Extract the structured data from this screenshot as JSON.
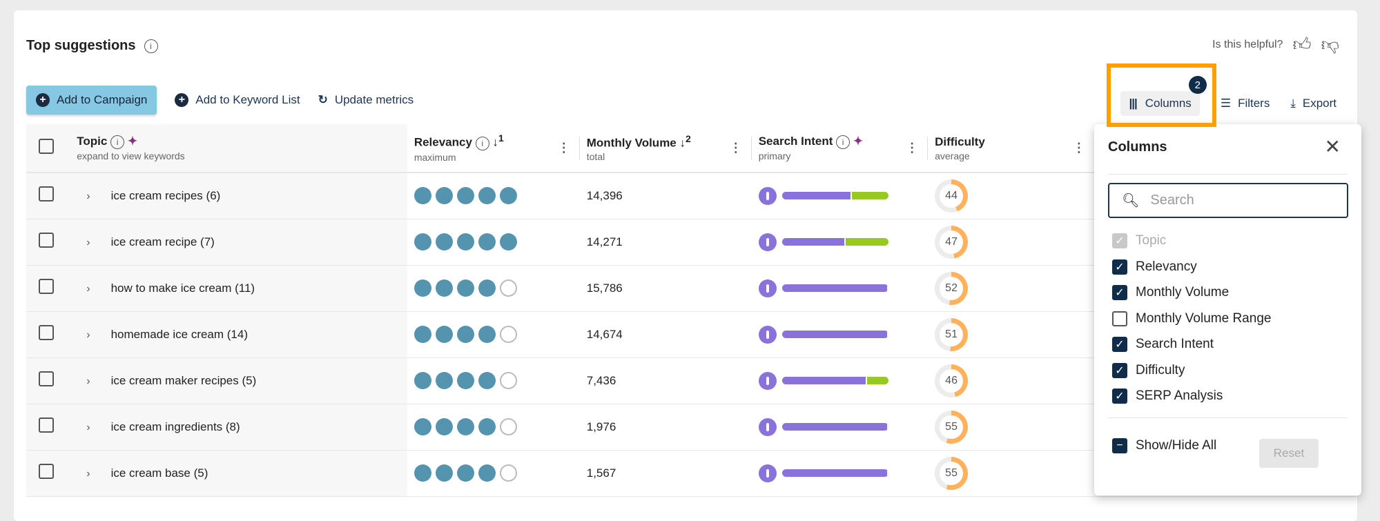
{
  "header": {
    "title": "Top suggestions",
    "helpful": "Is this helpful?"
  },
  "toolbar": {
    "add_campaign": "Add to Campaign",
    "add_keyword_list": "Add to Keyword List",
    "update_metrics": "Update metrics",
    "columns": "Columns",
    "columns_badge": "2",
    "filters": "Filters",
    "export": "Export"
  },
  "table": {
    "headers": [
      {
        "label": "Topic",
        "sub": "expand to view keywords"
      },
      {
        "label": "Relevancy",
        "sub": "maximum",
        "sort": "1"
      },
      {
        "label": "Monthly Volume",
        "sub": "total",
        "sort": "2"
      },
      {
        "label": "Search Intent",
        "sub": "primary"
      },
      {
        "label": "Difficulty",
        "sub": "average"
      }
    ],
    "rows": [
      {
        "topic": "ice cream recipes (6)",
        "relevancy": 5,
        "volume": "14,396",
        "intent_primary_pct": 66,
        "difficulty": "44"
      },
      {
        "topic": "ice cream recipe (7)",
        "relevancy": 5,
        "volume": "14,271",
        "intent_primary_pct": 60,
        "difficulty": "47"
      },
      {
        "topic": "how to make ice cream (11)",
        "relevancy": 4,
        "volume": "15,786",
        "intent_primary_pct": 100,
        "difficulty": "52"
      },
      {
        "topic": "homemade ice cream (14)",
        "relevancy": 4,
        "volume": "14,674",
        "intent_primary_pct": 100,
        "difficulty": "51"
      },
      {
        "topic": "ice cream maker recipes (5)",
        "relevancy": 4,
        "volume": "7,436",
        "intent_primary_pct": 80,
        "difficulty": "46"
      },
      {
        "topic": "ice cream ingredients (8)",
        "relevancy": 4,
        "volume": "1,976",
        "intent_primary_pct": 100,
        "difficulty": "55"
      },
      {
        "topic": "ice cream base (5)",
        "relevancy": 4,
        "volume": "1,567",
        "intent_primary_pct": 100,
        "difficulty": "55"
      }
    ]
  },
  "panel": {
    "title": "Columns",
    "search_placeholder": "Search",
    "options": [
      {
        "label": "Topic",
        "state": "disabled"
      },
      {
        "label": "Relevancy",
        "state": "on"
      },
      {
        "label": "Monthly Volume",
        "state": "on"
      },
      {
        "label": "Monthly Volume Range",
        "state": "off"
      },
      {
        "label": "Search Intent",
        "state": "on"
      },
      {
        "label": "Difficulty",
        "state": "on"
      },
      {
        "label": "SERP Analysis",
        "state": "on"
      }
    ],
    "show_hide_all": "Show/Hide All",
    "reset": "Reset"
  },
  "colors": {
    "accent": "#0f2d4a",
    "primary_button": "#86c7e3",
    "relevancy": "#5494ae",
    "intent_purple": "#8a72db",
    "intent_green": "#97c925",
    "difficulty": "#ffb15c",
    "highlight": "#ff9f00"
  }
}
